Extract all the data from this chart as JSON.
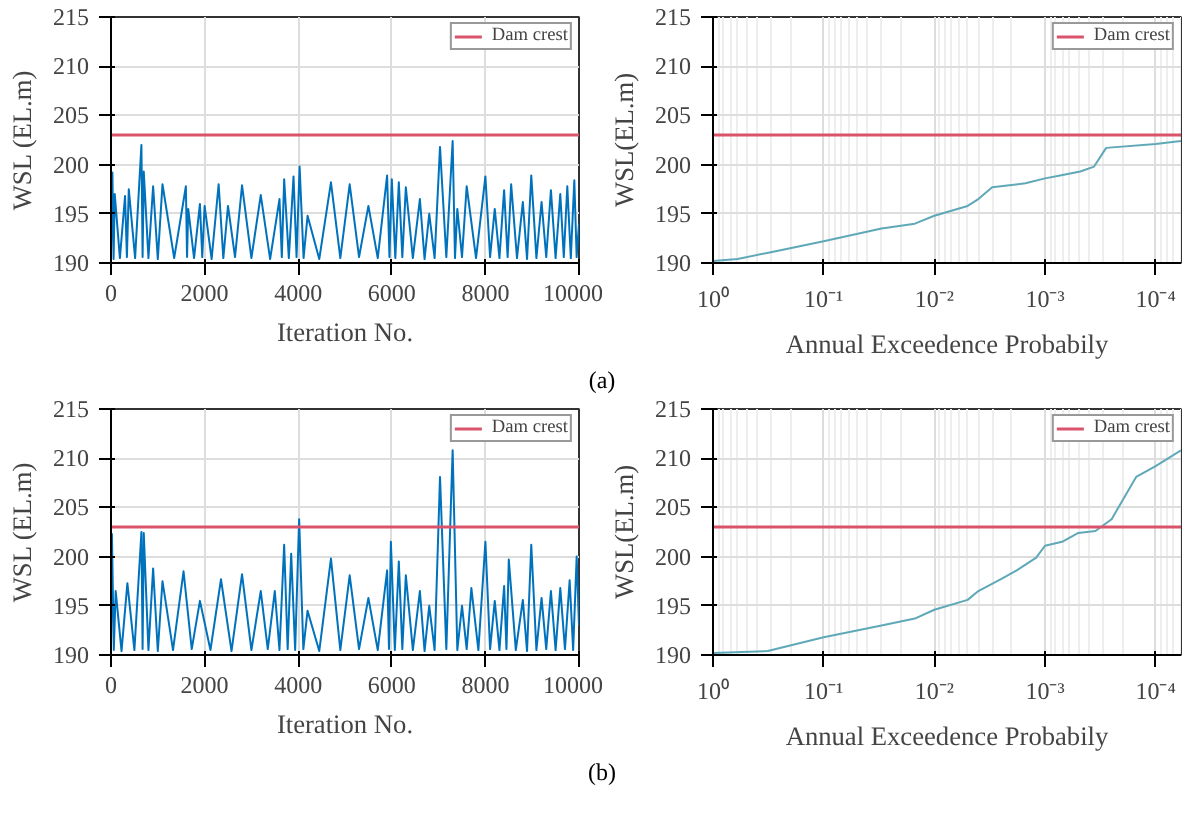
{
  "chart_data": [
    {
      "type": "line",
      "xlabel": "Iteration No.",
      "ylabel": "WSL (EL.m)",
      "xlim": [
        0,
        10000
      ],
      "ylim": [
        190,
        215
      ],
      "xticks": [
        0,
        2000,
        4000,
        6000,
        8000,
        10000
      ],
      "yticks": [
        190,
        195,
        200,
        205,
        210,
        215
      ],
      "grid": true,
      "legend": "top right",
      "annotations": [
        "(a)"
      ],
      "ref_lines": [
        {
          "axis": "y",
          "value": 203,
          "label": "Dam crest",
          "color": "#d9536a"
        }
      ],
      "series": [
        {
          "color": "#0072bd",
          "x": [
            0,
            30,
            55,
            80,
            190,
            300,
            340,
            380,
            515,
            650,
            675,
            700,
            800,
            900,
            1000,
            1100,
            1350,
            1600,
            1625,
            1650,
            1775,
            1900,
            1950,
            2000,
            2150,
            2300,
            2400,
            2500,
            2650,
            2800,
            3000,
            3200,
            3400,
            3600,
            3650,
            3700,
            3800,
            3900,
            3965,
            4030,
            4115,
            4200,
            4450,
            4700,
            4900,
            5100,
            5300,
            5500,
            5700,
            5900,
            5950,
            6000,
            6075,
            6150,
            6225,
            6300,
            6450,
            6600,
            6700,
            6800,
            6915,
            7030,
            7165,
            7300,
            7350,
            7400,
            7500,
            7600,
            7800,
            8000,
            8100,
            8200,
            8300,
            8400,
            8475,
            8550,
            8675,
            8800,
            8890,
            8980,
            9090,
            9200,
            9300,
            9400,
            9500,
            9600,
            9675,
            9750,
            9825,
            9900,
            9950,
            10000
          ],
          "values": [
            191,
            199.2,
            190.4,
            197,
            190.5,
            196.8,
            190.6,
            197.5,
            190.5,
            202,
            190.6,
            199.3,
            190.5,
            197.8,
            190.4,
            198,
            190.5,
            197.8,
            190.6,
            195.5,
            190.5,
            196,
            190.6,
            195.8,
            190.4,
            198,
            190.5,
            195.8,
            190.6,
            197.9,
            190.5,
            196.9,
            190.4,
            196.5,
            190.6,
            198.5,
            190.5,
            198.8,
            190.6,
            199.8,
            190.5,
            194.8,
            190.4,
            198.2,
            190.5,
            198,
            190.6,
            195.8,
            190.5,
            198.9,
            190.6,
            198.5,
            190.5,
            198.2,
            190.6,
            197.7,
            190.5,
            196.5,
            190.4,
            195,
            190.5,
            201.8,
            190.6,
            202.4,
            190.5,
            195.5,
            190.6,
            197.8,
            190.5,
            198.8,
            190.6,
            195.5,
            190.5,
            197.4,
            190.6,
            198,
            190.5,
            196.2,
            190.4,
            198.9,
            190.5,
            196.2,
            190.6,
            197.4,
            190.5,
            197,
            190.6,
            197.8,
            190.5,
            198.4,
            190.6,
            194
          ]
        }
      ]
    },
    {
      "type": "line",
      "xlabel": "Annual Exceedence Probabily",
      "ylabel": "WSL(EL.m)",
      "log": "x",
      "xlim": [
        1,
        5.9e-05
      ],
      "ylim": [
        190,
        215
      ],
      "xticks": [
        {
          "value": 1,
          "label": "10⁰"
        },
        {
          "value": 0.1,
          "label": "10⁻¹"
        },
        {
          "value": 0.01,
          "label": "10⁻²"
        },
        {
          "value": 0.001,
          "label": "10⁻³"
        },
        {
          "value": 0.0001,
          "label": "10⁻⁴"
        }
      ],
      "yticks": [
        190,
        195,
        200,
        205,
        210,
        215
      ],
      "grid": true,
      "legend": "top right",
      "ref_lines": [
        {
          "axis": "y",
          "value": 203,
          "label": "Dam crest",
          "color": "#d9536a"
        }
      ],
      "series": [
        {
          "color": "#5fa8b8",
          "x": [
            1,
            0.6,
            0.3,
            0.1,
            0.03,
            0.015,
            0.01,
            0.005,
            0.004,
            0.003,
            0.0015,
            0.001,
            0.00073,
            0.00048,
            0.00036,
            0.00028,
            0.0001,
            5.9e-05
          ],
          "values": [
            190.2,
            190.4,
            191.1,
            192.2,
            193.5,
            194,
            194.8,
            195.8,
            196.5,
            197.7,
            198.1,
            198.6,
            198.9,
            199.3,
            199.8,
            201.7,
            202.1,
            202.4
          ]
        }
      ]
    },
    {
      "type": "line",
      "xlabel": "Iteration No.",
      "ylabel": "WSL (EL.m)",
      "xlim": [
        0,
        10000
      ],
      "ylim": [
        190,
        215
      ],
      "xticks": [
        0,
        2000,
        4000,
        6000,
        8000,
        10000
      ],
      "yticks": [
        190,
        195,
        200,
        205,
        210,
        215
      ],
      "grid": true,
      "legend": "top right",
      "annotations": [
        "(b)"
      ],
      "ref_lines": [
        {
          "axis": "y",
          "value": 203,
          "label": "Dam crest",
          "color": "#d9536a"
        }
      ],
      "series": [
        {
          "color": "#0072bd",
          "x": [
            0,
            20,
            60,
            100,
            225,
            350,
            500,
            650,
            675,
            700,
            800,
            900,
            1000,
            1100,
            1325,
            1550,
            1725,
            1900,
            2125,
            2350,
            2575,
            2800,
            3000,
            3200,
            3350,
            3500,
            3600,
            3700,
            3775,
            3850,
            3935,
            4020,
            4110,
            4200,
            4450,
            4700,
            4900,
            5100,
            5300,
            5500,
            5700,
            5900,
            5940,
            5980,
            6065,
            6150,
            6225,
            6300,
            6450,
            6600,
            6700,
            6800,
            6915,
            7030,
            7165,
            7300,
            7400,
            7500,
            7600,
            7700,
            7850,
            8000,
            8100,
            8200,
            8300,
            8400,
            8450,
            8500,
            8650,
            8800,
            8890,
            8980,
            9090,
            9200,
            9300,
            9400,
            9500,
            9600,
            9700,
            9800,
            9875,
            9950,
            10000
          ],
          "values": [
            191,
            202.3,
            190.5,
            196.5,
            190.4,
            197.3,
            190.5,
            202.5,
            190.6,
            202.4,
            190.5,
            198.8,
            190.4,
            197.5,
            190.5,
            198.5,
            190.6,
            195.5,
            190.5,
            197.7,
            190.4,
            198.2,
            190.5,
            196.5,
            190.6,
            196.5,
            190.5,
            201.2,
            190.6,
            200.3,
            190.5,
            203.8,
            190.6,
            194.5,
            190.4,
            199.8,
            190.5,
            198.1,
            190.6,
            195.8,
            190.5,
            198.6,
            190.6,
            201.5,
            190.5,
            199.5,
            190.6,
            198.1,
            190.5,
            196.5,
            190.4,
            195,
            190.5,
            208.1,
            190.6,
            210.8,
            190.5,
            195,
            190.6,
            196.8,
            190.5,
            201.5,
            190.6,
            195.5,
            190.5,
            197,
            190.6,
            199.7,
            190.5,
            195.6,
            190.4,
            201.2,
            190.5,
            195.8,
            190.6,
            196.5,
            190.5,
            196.8,
            190.6,
            197.6,
            190.5,
            200,
            193
          ]
        }
      ]
    },
    {
      "type": "line",
      "xlabel": "Annual Exceedence Probabily",
      "ylabel": "WSL(EL.m)",
      "log": "x",
      "xlim": [
        1,
        5.9e-05
      ],
      "ylim": [
        190,
        215
      ],
      "xticks": [
        {
          "value": 1,
          "label": "10⁰"
        },
        {
          "value": 0.1,
          "label": "10⁻¹"
        },
        {
          "value": 0.01,
          "label": "10⁻²"
        },
        {
          "value": 0.001,
          "label": "10⁻³"
        },
        {
          "value": 0.0001,
          "label": "10⁻⁴"
        }
      ],
      "yticks": [
        190,
        195,
        200,
        205,
        210,
        215
      ],
      "grid": true,
      "legend": "top right",
      "ref_lines": [
        {
          "axis": "y",
          "value": 203,
          "label": "Dam crest",
          "color": "#d9536a"
        }
      ],
      "series": [
        {
          "color": "#5fa8b8",
          "x": [
            1,
            0.32,
            0.1,
            0.03,
            0.015,
            0.01,
            0.005,
            0.004,
            0.0025,
            0.0018,
            0.0012,
            0.001,
            0.0007,
            0.0005,
            0.00035,
            0.00025,
            0.00015,
            0.0001,
            5.9e-05
          ],
          "values": [
            190.2,
            190.4,
            191.8,
            193,
            193.7,
            194.6,
            195.6,
            196.5,
            197.7,
            198.6,
            199.9,
            201.1,
            201.5,
            202.4,
            202.6,
            203.8,
            208.1,
            209.2,
            210.8
          ]
        }
      ]
    }
  ]
}
